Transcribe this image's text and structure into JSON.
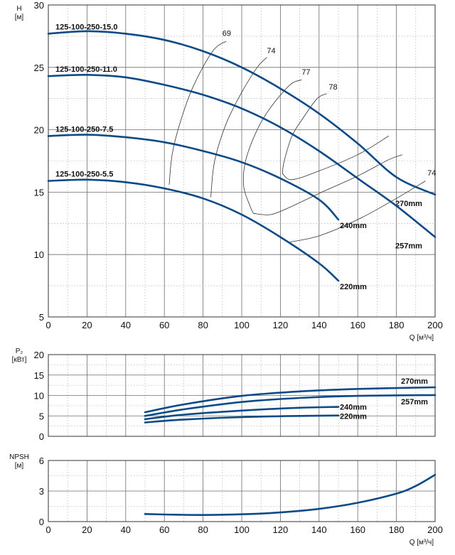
{
  "colors": {
    "curve": "#0b4a86",
    "thin": "#333333"
  },
  "chart_data": [
    {
      "id": "head",
      "type": "line",
      "xlabel": "Q [м³/ч]",
      "ylabel": "H",
      "yunit": "[м]",
      "xlim": [
        0,
        200
      ],
      "ylim": [
        5,
        30
      ],
      "xticks": [
        0,
        20,
        40,
        60,
        80,
        100,
        120,
        140,
        160,
        180,
        200
      ],
      "yticks": [
        5,
        10,
        15,
        20,
        25,
        30
      ],
      "grid": true,
      "series": [
        {
          "name": "125-100-250-15.0",
          "end_label": "270mm",
          "x": [
            0,
            20,
            40,
            60,
            80,
            100,
            120,
            140,
            160,
            180,
            200
          ],
          "y": [
            27.7,
            27.9,
            27.7,
            27.2,
            26.3,
            25.0,
            23.3,
            21.3,
            18.9,
            16.2,
            14.8
          ]
        },
        {
          "name": "125-100-250-11.0",
          "end_label": "257mm",
          "x": [
            0,
            20,
            40,
            60,
            80,
            100,
            120,
            140,
            160,
            180,
            200
          ],
          "y": [
            24.3,
            24.4,
            24.2,
            23.6,
            22.8,
            21.7,
            20.2,
            18.3,
            16.1,
            13.9,
            11.4
          ]
        },
        {
          "name": "125-100-250-7.5",
          "end_label": "240mm",
          "x": [
            0,
            20,
            40,
            60,
            80,
            100,
            120,
            140,
            150
          ],
          "y": [
            19.5,
            19.6,
            19.4,
            19.0,
            18.3,
            17.4,
            16.1,
            14.4,
            12.8
          ]
        },
        {
          "name": "125-100-250-5.5",
          "end_label": "220mm",
          "x": [
            0,
            20,
            40,
            60,
            80,
            100,
            120,
            140,
            150
          ],
          "y": [
            15.9,
            16.0,
            15.8,
            15.3,
            14.5,
            13.2,
            11.4,
            9.3,
            7.9
          ]
        }
      ],
      "efficiency_lines": [
        {
          "label": "69",
          "x": [
            62.5,
            64,
            68,
            75,
            85,
            92
          ],
          "y": [
            15.6,
            18.0,
            20.5,
            23.5,
            26.3,
            27.1
          ]
        },
        {
          "label": "74",
          "x": [
            84,
            86,
            92,
            100,
            108,
            113
          ],
          "y": [
            14.6,
            17.5,
            20.5,
            23.0,
            25.0,
            25.8
          ]
        },
        {
          "label": "77",
          "x": [
            106,
            104,
            101,
            102,
            108,
            115,
            125,
            131
          ],
          "y": [
            13.3,
            14.0,
            15.5,
            17.5,
            20.0,
            21.8,
            23.6,
            24.0
          ]
        },
        {
          "label": "78",
          "x": [
            121,
            122,
            126,
            132,
            139,
            144
          ],
          "y": [
            16.5,
            17.5,
            19.5,
            21.0,
            22.5,
            22.9
          ]
        },
        {
          "label": "77",
          "x": [
            106,
            115,
            125,
            140,
            160,
            176,
            183
          ],
          "y": [
            13.3,
            13.2,
            13.8,
            14.9,
            16.3,
            17.6,
            18.0
          ]
        },
        {
          "label": "78",
          "x": [
            121,
            126,
            140,
            160,
            176
          ],
          "y": [
            16.5,
            16.0,
            16.7,
            18.0,
            19.5
          ]
        },
        {
          "label": "74",
          "x": [
            125,
            140,
            160,
            180,
            195
          ],
          "y": [
            11.0,
            11.5,
            12.8,
            14.5,
            15.9
          ]
        }
      ],
      "efficiency_unit_positions": "labels at curve ends",
      "efficiency_label_points": [
        {
          "text": "69",
          "x": 90,
          "y": 27.3
        },
        {
          "text": "74",
          "x": 113,
          "y": 25.9
        },
        {
          "text": "77",
          "x": 131,
          "y": 24.2
        },
        {
          "text": "78",
          "x": 145,
          "y": 23.0
        },
        {
          "text": "74",
          "x": 196,
          "y": 16.1
        }
      ]
    },
    {
      "id": "power",
      "type": "line",
      "xlabel": "",
      "ylabel": "P₂",
      "yunit": "[кВт]",
      "xlim": [
        0,
        200
      ],
      "ylim": [
        0,
        20
      ],
      "xticks": [
        0,
        20,
        40,
        60,
        80,
        100,
        120,
        140,
        160,
        180,
        200
      ],
      "yticks": [
        0,
        5,
        10,
        15,
        20
      ],
      "grid": true,
      "series": [
        {
          "name": "270mm",
          "x": [
            50,
            70,
            100,
            130,
            160,
            200
          ],
          "y": [
            5.9,
            7.8,
            9.9,
            11.0,
            11.6,
            12.0
          ]
        },
        {
          "name": "257mm",
          "x": [
            50,
            70,
            100,
            130,
            160,
            200
          ],
          "y": [
            5.0,
            6.6,
            8.4,
            9.4,
            9.9,
            10.1
          ]
        },
        {
          "name": "240mm",
          "x": [
            50,
            70,
            100,
            130,
            150
          ],
          "y": [
            4.2,
            5.3,
            6.3,
            7.0,
            7.2
          ]
        },
        {
          "name": "220mm",
          "x": [
            50,
            70,
            100,
            130,
            150
          ],
          "y": [
            3.4,
            4.1,
            4.7,
            5.0,
            5.1
          ]
        }
      ]
    },
    {
      "id": "npsh",
      "type": "line",
      "xlabel": "Q [м³/ч]",
      "ylabel": "NPSH",
      "yunit": "[м]",
      "xlim": [
        0,
        200
      ],
      "ylim": [
        0,
        6
      ],
      "xticks": [
        0,
        20,
        40,
        60,
        80,
        100,
        120,
        140,
        160,
        180,
        200
      ],
      "yticks": [
        0,
        3,
        6
      ],
      "grid": true,
      "series": [
        {
          "name": "",
          "x": [
            50,
            60,
            80,
            100,
            120,
            140,
            160,
            180,
            190,
            200
          ],
          "y": [
            0.75,
            0.7,
            0.65,
            0.72,
            0.9,
            1.25,
            1.85,
            2.75,
            3.5,
            4.6
          ]
        }
      ]
    }
  ]
}
